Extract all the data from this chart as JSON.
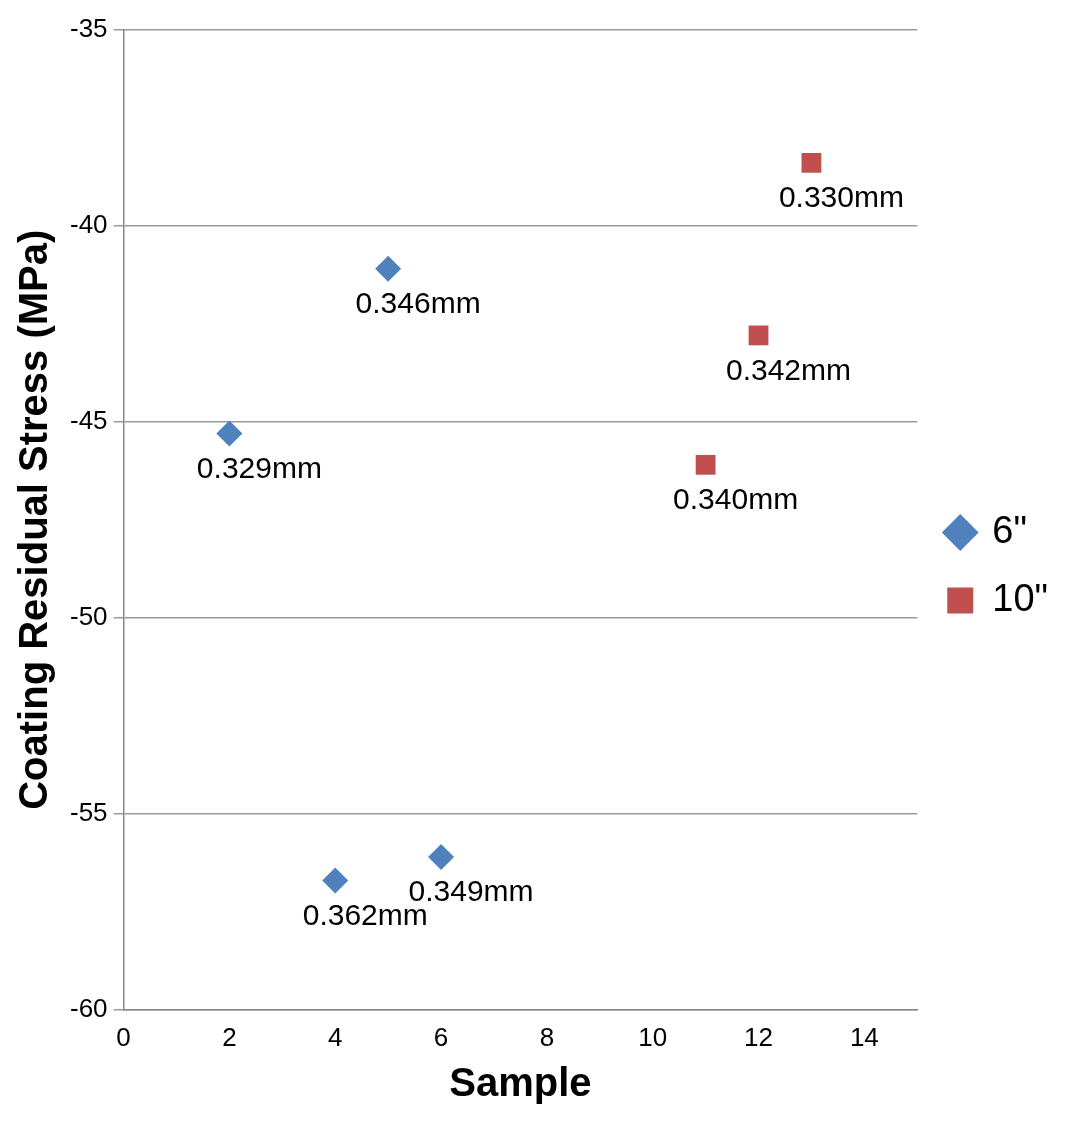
{
  "chart_data": {
    "type": "scatter",
    "xlabel": "Sample",
    "ylabel": "Coating Residual Stress (MPa)",
    "xlim": [
      0,
      15
    ],
    "xticks": [
      0,
      2,
      4,
      6,
      8,
      10,
      12,
      14
    ],
    "ylim": [
      -60,
      -35
    ],
    "yticks": [
      -60,
      -55,
      -50,
      -45,
      -40,
      -35
    ],
    "grid": "y",
    "legend": "right",
    "series": [
      {
        "name": "6\"",
        "color": "#4f81bd",
        "marker": "diamond",
        "x": [
          2,
          5,
          4,
          6
        ],
        "values": [
          -45.3,
          -41.1,
          -56.7,
          -56.1
        ]
      },
      {
        "name": "10\"",
        "color": "#c0504d",
        "marker": "square",
        "x": [
          11,
          12,
          13
        ],
        "values": [
          -46.1,
          -42.8,
          -38.4
        ]
      }
    ],
    "annotations": [
      {
        "text": "0.329mm",
        "x": 2,
        "y": -45.3
      },
      {
        "text": "0.346mm",
        "x": 5,
        "y": -41.1
      },
      {
        "text": "0.362mm",
        "x": 4,
        "y": -56.7
      },
      {
        "text": "0.349mm",
        "x": 6,
        "y": -56.1
      },
      {
        "text": "0.340mm",
        "x": 11,
        "y": -46.1
      },
      {
        "text": "0.342mm",
        "x": 12,
        "y": -42.8
      },
      {
        "text": "0.330mm",
        "x": 13,
        "y": -38.4
      }
    ]
  }
}
